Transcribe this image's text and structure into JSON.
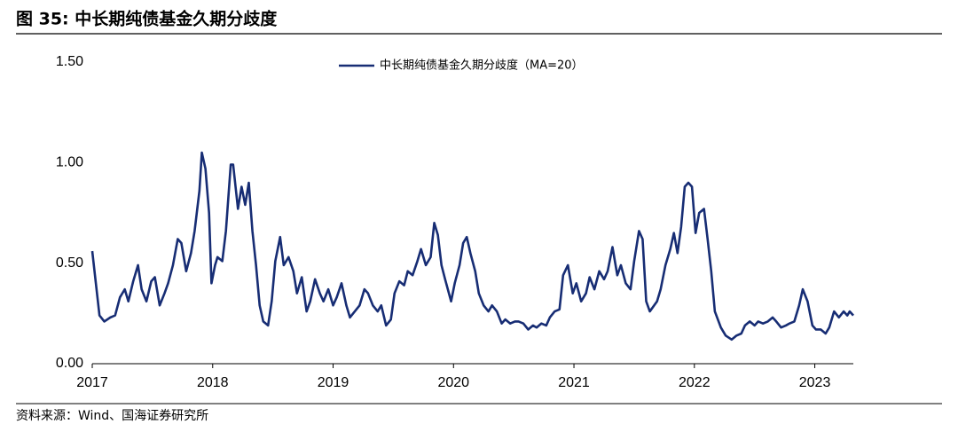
{
  "chart_data": {
    "type": "line",
    "title": "图 35:  中长期纯债基金久期分歧度",
    "source": "资料来源：Wind、国海证券研究所",
    "x": [
      2017.0,
      2017.03,
      2017.06,
      2017.1,
      2017.15,
      2017.19,
      2017.23,
      2017.27,
      2017.3,
      2017.34,
      2017.38,
      2017.41,
      2017.45,
      2017.49,
      2017.52,
      2017.56,
      2017.6,
      2017.63,
      2017.67,
      2017.71,
      2017.74,
      2017.78,
      2017.82,
      2017.85,
      2017.89,
      2017.91,
      2017.94,
      2017.97,
      2017.99,
      2018.02,
      2018.04,
      2018.08,
      2018.11,
      2018.15,
      2018.17,
      2018.21,
      2018.24,
      2018.27,
      2018.3,
      2018.33,
      2018.36,
      2018.39,
      2018.42,
      2018.46,
      2018.49,
      2018.52,
      2018.56,
      2018.59,
      2018.63,
      2018.67,
      2018.7,
      2018.74,
      2018.78,
      2018.81,
      2018.85,
      2018.89,
      2018.92,
      2018.96,
      2019.0,
      2019.03,
      2019.07,
      2019.11,
      2019.14,
      2019.18,
      2019.22,
      2019.26,
      2019.29,
      2019.33,
      2019.37,
      2019.4,
      2019.44,
      2019.48,
      2019.51,
      2019.55,
      2019.59,
      2019.62,
      2019.66,
      2019.7,
      2019.73,
      2019.77,
      2019.81,
      2019.84,
      2019.87,
      2019.9,
      2019.93,
      2019.98,
      2020.01,
      2020.05,
      2020.08,
      2020.11,
      2020.14,
      2020.18,
      2020.21,
      2020.25,
      2020.29,
      2020.32,
      2020.36,
      2020.4,
      2020.43,
      2020.47,
      2020.51,
      2020.54,
      2020.58,
      2020.62,
      2020.66,
      2020.69,
      2020.73,
      2020.77,
      2020.8,
      2020.84,
      2020.88,
      2020.91,
      2020.95,
      2020.99,
      2021.02,
      2021.06,
      2021.1,
      2021.13,
      2021.17,
      2021.21,
      2021.25,
      2021.28,
      2021.32,
      2021.36,
      2021.39,
      2021.43,
      2021.47,
      2021.5,
      2021.54,
      2021.57,
      2021.6,
      2021.63,
      2021.69,
      2021.72,
      2021.76,
      2021.8,
      2021.83,
      2021.86,
      2021.89,
      2021.92,
      2021.95,
      2021.98,
      2022.01,
      2022.04,
      2022.08,
      2022.11,
      2022.14,
      2022.17,
      2022.22,
      2022.26,
      2022.31,
      2022.35,
      2022.39,
      2022.42,
      2022.46,
      2022.5,
      2022.53,
      2022.57,
      2022.61,
      2022.65,
      2022.68,
      2022.72,
      2022.76,
      2022.79,
      2022.83,
      2022.87,
      2022.9,
      2022.94,
      2022.98,
      2023.01,
      2023.05,
      2023.09,
      2023.12,
      2023.16,
      2023.2,
      2023.24,
      2023.27,
      2023.29,
      2023.32
    ],
    "series": [
      {
        "name": "中长期纯债基金久期分歧度（MA=20）",
        "color": "#172d74",
        "values": [
          0.56,
          0.4,
          0.24,
          0.21,
          0.23,
          0.24,
          0.33,
          0.37,
          0.31,
          0.41,
          0.49,
          0.37,
          0.31,
          0.41,
          0.43,
          0.29,
          0.35,
          0.4,
          0.49,
          0.62,
          0.6,
          0.46,
          0.55,
          0.66,
          0.86,
          1.05,
          0.97,
          0.75,
          0.4,
          0.49,
          0.53,
          0.51,
          0.66,
          0.99,
          0.99,
          0.77,
          0.88,
          0.79,
          0.9,
          0.66,
          0.49,
          0.29,
          0.21,
          0.19,
          0.31,
          0.51,
          0.63,
          0.49,
          0.53,
          0.46,
          0.35,
          0.43,
          0.26,
          0.31,
          0.42,
          0.35,
          0.31,
          0.37,
          0.29,
          0.33,
          0.4,
          0.29,
          0.23,
          0.26,
          0.29,
          0.37,
          0.35,
          0.29,
          0.26,
          0.29,
          0.19,
          0.22,
          0.35,
          0.41,
          0.39,
          0.46,
          0.44,
          0.51,
          0.57,
          0.49,
          0.53,
          0.7,
          0.64,
          0.49,
          0.42,
          0.31,
          0.4,
          0.49,
          0.6,
          0.63,
          0.55,
          0.46,
          0.35,
          0.29,
          0.26,
          0.29,
          0.26,
          0.2,
          0.22,
          0.2,
          0.21,
          0.21,
          0.2,
          0.17,
          0.19,
          0.18,
          0.2,
          0.19,
          0.23,
          0.26,
          0.27,
          0.44,
          0.49,
          0.35,
          0.4,
          0.31,
          0.35,
          0.43,
          0.37,
          0.46,
          0.42,
          0.46,
          0.58,
          0.44,
          0.49,
          0.4,
          0.37,
          0.51,
          0.66,
          0.62,
          0.31,
          0.26,
          0.31,
          0.37,
          0.49,
          0.57,
          0.65,
          0.55,
          0.68,
          0.88,
          0.9,
          0.88,
          0.65,
          0.75,
          0.77,
          0.62,
          0.46,
          0.26,
          0.18,
          0.14,
          0.12,
          0.14,
          0.15,
          0.19,
          0.21,
          0.19,
          0.21,
          0.2,
          0.21,
          0.23,
          0.21,
          0.18,
          0.19,
          0.2,
          0.21,
          0.29,
          0.37,
          0.31,
          0.19,
          0.17,
          0.17,
          0.15,
          0.18,
          0.26,
          0.23,
          0.26,
          0.24,
          0.26,
          0.24
        ]
      }
    ],
    "xlim": [
      2017,
      2023.32
    ],
    "xticks": [
      2017,
      2018,
      2019,
      2020,
      2021,
      2022,
      2023
    ],
    "ylim": [
      0,
      1.5
    ],
    "yticks": [
      {
        "value": 0,
        "label": "0.00"
      },
      {
        "value": 0.5,
        "label": "0.50"
      },
      {
        "value": 1,
        "label": "1.00"
      },
      {
        "value": 1.5,
        "label": "1.50"
      }
    ],
    "grid": false,
    "legend": "top"
  }
}
